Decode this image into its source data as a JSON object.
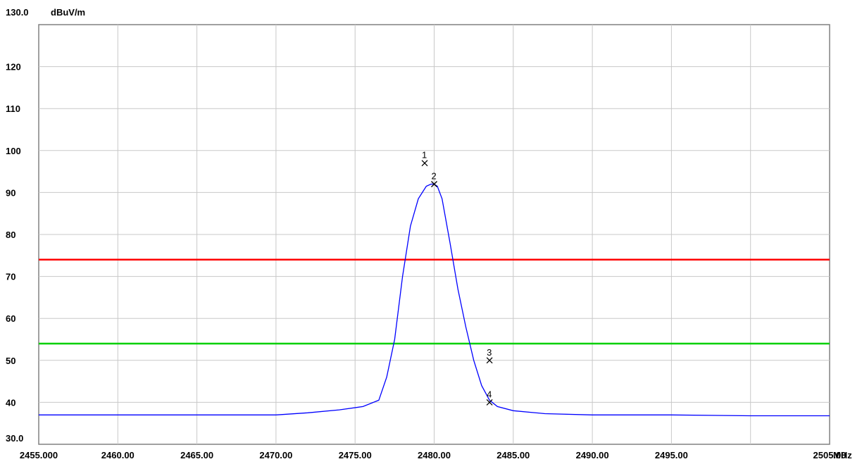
{
  "chart_data": {
    "type": "line",
    "title": "",
    "xlabel": "",
    "ylabel": "",
    "x_unit": "MHz",
    "y_unit": "dBuV/m",
    "xlim": [
      2455.0,
      2505.0
    ],
    "ylim": [
      30.0,
      130.0
    ],
    "x_ticks": [
      {
        "value": 2455.0,
        "label": "2455.000"
      },
      {
        "value": 2460.0,
        "label": "2460.00"
      },
      {
        "value": 2465.0,
        "label": "2465.00"
      },
      {
        "value": 2470.0,
        "label": "2470.00"
      },
      {
        "value": 2475.0,
        "label": "2475.00"
      },
      {
        "value": 2480.0,
        "label": "2480.00"
      },
      {
        "value": 2485.0,
        "label": "2485.00"
      },
      {
        "value": 2490.0,
        "label": "2490.00"
      },
      {
        "value": 2495.0,
        "label": "2495.00"
      },
      {
        "value": 2505.0,
        "label": "2505.00"
      }
    ],
    "y_ticks": [
      {
        "value": 130,
        "label": "130.0"
      },
      {
        "value": 120,
        "label": "120"
      },
      {
        "value": 110,
        "label": "110"
      },
      {
        "value": 100,
        "label": "100"
      },
      {
        "value": 90,
        "label": "90"
      },
      {
        "value": 80,
        "label": "80"
      },
      {
        "value": 70,
        "label": "70"
      },
      {
        "value": 60,
        "label": "60"
      },
      {
        "value": 50,
        "label": "50"
      },
      {
        "value": 40,
        "label": "40"
      },
      {
        "value": 30,
        "label": "30.0"
      }
    ],
    "grid_x": [
      2460,
      2465,
      2470,
      2475,
      2480,
      2485,
      2490,
      2495,
      2500
    ],
    "grid_y": [
      40,
      50,
      60,
      70,
      80,
      90,
      100,
      110,
      120
    ],
    "grid": true,
    "limit_lines": [
      {
        "value": 74,
        "color": "#ff0000"
      },
      {
        "value": 54,
        "color": "#00d000"
      }
    ],
    "series": [
      {
        "color": "#0000ff",
        "x": [
          2455.0,
          2460.0,
          2465.0,
          2470.0,
          2472.0,
          2474.0,
          2475.5,
          2476.5,
          2477.0,
          2477.5,
          2478.0,
          2478.5,
          2479.0,
          2479.5,
          2479.8,
          2480.0,
          2480.2,
          2480.5,
          2481.0,
          2481.5,
          2482.0,
          2482.5,
          2483.0,
          2483.5,
          2484.0,
          2485.0,
          2487.0,
          2490.0,
          2495.0,
          2500.0,
          2505.0
        ],
        "y": [
          37.0,
          37.0,
          37.0,
          37.0,
          37.5,
          38.2,
          39.0,
          40.5,
          46.0,
          55.0,
          70.0,
          82.0,
          88.5,
          91.5,
          92.0,
          92.0,
          91.5,
          88.5,
          78.0,
          67.0,
          58.0,
          50.0,
          44.0,
          40.5,
          39.0,
          38.0,
          37.3,
          37.0,
          37.0,
          36.8,
          36.8
        ]
      }
    ],
    "markers": [
      {
        "label": "1",
        "x": 2479.4,
        "y": 97.0
      },
      {
        "label": "2",
        "x": 2480.0,
        "y": 92.0
      },
      {
        "label": "3",
        "x": 2483.5,
        "y": 50.0
      },
      {
        "label": "4",
        "x": 2483.5,
        "y": 40.0
      }
    ]
  }
}
